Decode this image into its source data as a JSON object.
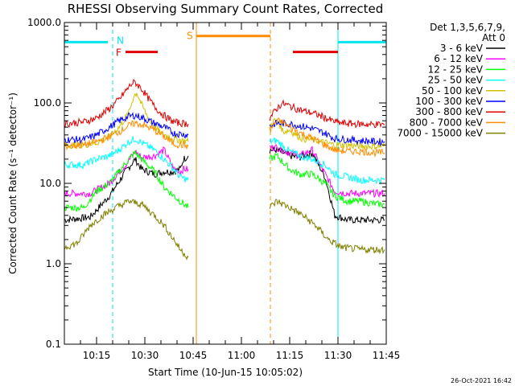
{
  "chart_data": {
    "type": "line",
    "title": "RHESSI Observing Summary Count Rates, Corrected",
    "xlabel": "Start Time (10-Jun-15 10:05:02)",
    "ylabel": "Corrected Count Rate (s⁻¹ detector⁻¹)",
    "yscale": "log",
    "ylim": [
      0.1,
      1000.0
    ],
    "xlim_minutes": [
      0,
      100
    ],
    "yticks": [
      0.1,
      1.0,
      10.0,
      100.0,
      1000.0
    ],
    "ytick_labels": [
      "0.1",
      "1.0",
      "10.0",
      "100.0",
      "1000.0"
    ],
    "xticks_minutes": [
      10,
      25,
      40,
      55,
      70,
      85,
      100
    ],
    "xtick_labels": [
      "10:15",
      "10:30",
      "10:45",
      "11:00",
      "11:15",
      "11:30",
      "11:45"
    ],
    "legend": {
      "header": "Det 1,3,5,6,7,9,",
      "subheader": "Att 0",
      "placement": "top-right-outside"
    },
    "gaps": [
      [
        38.7,
        63.8
      ]
    ],
    "series": [
      {
        "name": "3 - 6 keV",
        "color": "#000000",
        "points": [
          [
            0,
            3.5
          ],
          [
            8,
            3.8
          ],
          [
            14,
            7
          ],
          [
            19,
            14
          ],
          [
            22,
            20
          ],
          [
            24,
            15
          ],
          [
            28,
            13
          ],
          [
            31,
            14
          ],
          [
            34,
            14
          ],
          [
            36,
            15
          ],
          [
            37,
            20
          ],
          [
            38.5,
            22
          ],
          [
            63.8,
            26
          ],
          [
            66,
            26
          ],
          [
            70,
            22
          ],
          [
            73,
            21
          ],
          [
            77,
            24
          ],
          [
            81,
            12
          ],
          [
            84,
            4.0
          ],
          [
            88,
            3.5
          ],
          [
            92,
            3.5
          ],
          [
            97,
            3.5
          ],
          [
            99.5,
            3.5
          ]
        ]
      },
      {
        "name": "6 - 12 keV",
        "color": "#ff00ff",
        "points": [
          [
            0,
            7.5
          ],
          [
            8,
            7.5
          ],
          [
            14,
            10
          ],
          [
            19,
            17
          ],
          [
            22,
            25
          ],
          [
            24,
            21
          ],
          [
            28,
            22
          ],
          [
            31,
            26
          ],
          [
            34,
            15
          ],
          [
            36,
            14
          ],
          [
            37,
            15
          ],
          [
            38.5,
            15
          ],
          [
            63.8,
            28
          ],
          [
            66,
            28
          ],
          [
            70,
            24
          ],
          [
            73,
            22
          ],
          [
            77,
            26
          ],
          [
            81,
            13
          ],
          [
            84,
            8
          ],
          [
            88,
            7.5
          ],
          [
            92,
            7.5
          ],
          [
            97,
            7.5
          ],
          [
            99.5,
            7.5
          ]
        ]
      },
      {
        "name": "12 - 25 keV",
        "color": "#00ff00",
        "points": [
          [
            0,
            5
          ],
          [
            6,
            5
          ],
          [
            10,
            8
          ],
          [
            14,
            10
          ],
          [
            17,
            14
          ],
          [
            20,
            20
          ],
          [
            22,
            24
          ],
          [
            24,
            20
          ],
          [
            28,
            14
          ],
          [
            31,
            9
          ],
          [
            34,
            7
          ],
          [
            36,
            6
          ],
          [
            38.5,
            5
          ],
          [
            63.8,
            20
          ],
          [
            66,
            22
          ],
          [
            70,
            15
          ],
          [
            73,
            13
          ],
          [
            77,
            13
          ],
          [
            81,
            10
          ],
          [
            84,
            7
          ],
          [
            88,
            6
          ],
          [
            92,
            6
          ],
          [
            97,
            5.5
          ],
          [
            99.5,
            5.5
          ]
        ]
      },
      {
        "name": "25 - 50 keV",
        "color": "#00ffff",
        "points": [
          [
            0,
            17
          ],
          [
            6,
            17
          ],
          [
            10,
            20
          ],
          [
            14,
            22
          ],
          [
            17,
            26
          ],
          [
            20,
            33
          ],
          [
            22,
            36
          ],
          [
            24,
            32
          ],
          [
            28,
            26
          ],
          [
            31,
            20
          ],
          [
            34,
            15
          ],
          [
            36,
            12
          ],
          [
            38.5,
            11
          ],
          [
            63.8,
            33
          ],
          [
            66,
            34
          ],
          [
            70,
            25
          ],
          [
            73,
            22
          ],
          [
            77,
            20
          ],
          [
            81,
            17
          ],
          [
            84,
            13
          ],
          [
            88,
            12
          ],
          [
            92,
            11
          ],
          [
            97,
            11
          ],
          [
            99.5,
            11
          ]
        ]
      },
      {
        "name": "50 - 100 keV",
        "color": "#d0c000",
        "points": [
          [
            0,
            30
          ],
          [
            6,
            30
          ],
          [
            10,
            32
          ],
          [
            14,
            38
          ],
          [
            17,
            50
          ],
          [
            20,
            75
          ],
          [
            21.5,
            120
          ],
          [
            22.5,
            135
          ],
          [
            24,
            95
          ],
          [
            27,
            55
          ],
          [
            30,
            42
          ],
          [
            34,
            36
          ],
          [
            38.5,
            33
          ],
          [
            63.8,
            50
          ],
          [
            65,
            60
          ],
          [
            66.5,
            58
          ],
          [
            68,
            44
          ],
          [
            70,
            46
          ],
          [
            72,
            40
          ],
          [
            74,
            36
          ],
          [
            77,
            35
          ],
          [
            81,
            32
          ],
          [
            84,
            30
          ],
          [
            88,
            30
          ],
          [
            92,
            29
          ],
          [
            97,
            29
          ],
          [
            99.5,
            29
          ]
        ]
      },
      {
        "name": "100 - 300 keV",
        "color": "#0000ff",
        "points": [
          [
            0,
            35
          ],
          [
            6,
            35
          ],
          [
            10,
            40
          ],
          [
            14,
            50
          ],
          [
            17,
            60
          ],
          [
            20,
            68
          ],
          [
            22,
            70
          ],
          [
            24,
            66
          ],
          [
            28,
            56
          ],
          [
            31,
            50
          ],
          [
            34,
            42
          ],
          [
            38.5,
            40
          ],
          [
            63.8,
            52
          ],
          [
            66,
            56
          ],
          [
            70,
            55
          ],
          [
            73,
            52
          ],
          [
            77,
            48
          ],
          [
            81,
            42
          ],
          [
            84,
            36
          ],
          [
            88,
            35
          ],
          [
            92,
            34
          ],
          [
            97,
            33
          ],
          [
            99.5,
            33
          ]
        ]
      },
      {
        "name": "300 - 800 keV",
        "color": "#e00000",
        "points": [
          [
            0,
            55
          ],
          [
            6,
            58
          ],
          [
            10,
            65
          ],
          [
            14,
            85
          ],
          [
            17,
            110
          ],
          [
            19,
            140
          ],
          [
            21,
            175
          ],
          [
            22,
            180
          ],
          [
            24,
            150
          ],
          [
            26,
            115
          ],
          [
            28,
            90
          ],
          [
            30,
            75
          ],
          [
            32,
            65
          ],
          [
            34,
            58
          ],
          [
            36,
            56
          ],
          [
            38.5,
            55
          ],
          [
            63.8,
            65
          ],
          [
            66,
            85
          ],
          [
            67.5,
            98
          ],
          [
            69,
            95
          ],
          [
            71,
            88
          ],
          [
            74,
            80
          ],
          [
            77,
            75
          ],
          [
            80,
            68
          ],
          [
            83,
            60
          ],
          [
            86,
            56
          ],
          [
            90,
            55
          ],
          [
            95,
            54
          ],
          [
            99.5,
            54
          ]
        ]
      },
      {
        "name": "800 - 7000 keV",
        "color": "#ff8c00",
        "points": [
          [
            0,
            29
          ],
          [
            6,
            30
          ],
          [
            10,
            33
          ],
          [
            14,
            38
          ],
          [
            17,
            44
          ],
          [
            20,
            52
          ],
          [
            22,
            56
          ],
          [
            24,
            54
          ],
          [
            28,
            46
          ],
          [
            31,
            38
          ],
          [
            34,
            31
          ],
          [
            38.5,
            29
          ],
          [
            63.8,
            45
          ],
          [
            66,
            60
          ],
          [
            68,
            57
          ],
          [
            70,
            50
          ],
          [
            73,
            43
          ],
          [
            77,
            36
          ],
          [
            81,
            30
          ],
          [
            84,
            26
          ],
          [
            88,
            25
          ],
          [
            92,
            25
          ],
          [
            97,
            24
          ],
          [
            99.5,
            24
          ]
        ]
      },
      {
        "name": "7000 - 15000 keV",
        "color": "#808000",
        "points": [
          [
            0,
            1.6
          ],
          [
            4,
            1.8
          ],
          [
            8,
            3
          ],
          [
            12,
            4
          ],
          [
            16,
            5
          ],
          [
            20,
            6
          ],
          [
            24,
            5.5
          ],
          [
            28,
            4
          ],
          [
            31,
            3
          ],
          [
            34,
            2
          ],
          [
            36,
            1.5
          ],
          [
            38.5,
            1.2
          ],
          [
            63.8,
            5
          ],
          [
            66,
            6
          ],
          [
            70,
            5
          ],
          [
            74,
            4
          ],
          [
            78,
            3
          ],
          [
            82,
            2
          ],
          [
            86,
            1.6
          ],
          [
            92,
            1.5
          ],
          [
            99.5,
            1.5
          ]
        ]
      }
    ],
    "annotations": {
      "N": {
        "label": "N",
        "color": "#00e5ee",
        "bar_minutes": [
          [
            0,
            13.5
          ],
          [
            85,
            100
          ]
        ],
        "y_value": 570,
        "line_minutes": [
          0,
          15,
          85,
          100
        ]
      },
      "F": {
        "label": "F",
        "color": "#e00000",
        "bar_minutes": [
          [
            19,
            29
          ],
          [
            71,
            85
          ]
        ],
        "y_value": 430
      },
      "S": {
        "label": "S",
        "color": "#ff8c00",
        "bar_minutes": [
          [
            41,
            64
          ]
        ],
        "y_value": 680,
        "line_minutes": [
          41,
          64
        ]
      }
    }
  },
  "footer": {
    "timestamp": "26-Oct-2021 16:42"
  }
}
